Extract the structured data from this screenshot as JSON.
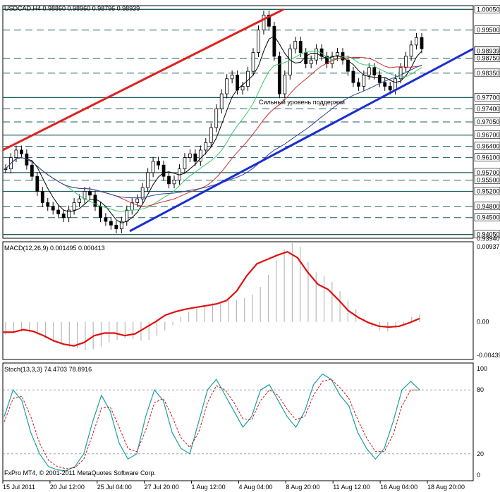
{
  "chart_data": {
    "type": "candlestick",
    "symbol_header": "USDCAD,H4",
    "ohlc_header": "0.98860 0.98960 0.98796 0.98939",
    "current_price": "0.98939",
    "support_text": "Сильный уровень поддержки",
    "copyright": "FxPro MT4, © 2001-2011 MetaQuotes Software Corp.",
    "price_axis": {
      "min": 0.9395,
      "max": 1.0015,
      "ticks": [
        "1.00050",
        "0.99500",
        "0.98750",
        "0.98350",
        "0.97700",
        "0.97400",
        "0.97050",
        "0.96700",
        "0.96400",
        "0.96100",
        "0.95700",
        "0.95500",
        "0.95200",
        "0.94800",
        "0.94500",
        "0.94050",
        "0.93940"
      ]
    },
    "levels": [
      {
        "price": 1.0005,
        "style": "solid"
      },
      {
        "price": 0.995,
        "style": "dashed"
      },
      {
        "price": 0.9875,
        "style": "dashed"
      },
      {
        "price": 0.9835,
        "style": "dashed"
      },
      {
        "price": 0.977,
        "style": "solid"
      },
      {
        "price": 0.974,
        "style": "dashed"
      },
      {
        "price": 0.9705,
        "style": "dashed"
      },
      {
        "price": 0.967,
        "style": "solid"
      },
      {
        "price": 0.964,
        "style": "dashed"
      },
      {
        "price": 0.961,
        "style": "dashed"
      },
      {
        "price": 0.957,
        "style": "solid"
      },
      {
        "price": 0.955,
        "style": "dashed"
      },
      {
        "price": 0.952,
        "style": "solid"
      },
      {
        "price": 0.948,
        "style": "dashed"
      },
      {
        "price": 0.945,
        "style": "dashed"
      },
      {
        "price": 0.9405,
        "style": "solid"
      }
    ],
    "x_labels": [
      "15 Jul 2011",
      "20 Jul 12:00",
      "25 Jul 04:00",
      "27 Jul 20:00",
      "1 Aug 12:00",
      "4 Aug 04:00",
      "8 Aug 20:00",
      "11 Aug 12:00",
      "16 Aug 04:00",
      "18 Aug 20:00"
    ],
    "close_path": [
      0.958,
      0.961,
      0.963,
      0.962,
      0.959,
      0.956,
      0.952,
      0.949,
      0.948,
      0.947,
      0.946,
      0.945,
      0.947,
      0.949,
      0.95,
      0.952,
      0.951,
      0.948,
      0.945,
      0.944,
      0.943,
      0.942,
      0.944,
      0.947,
      0.949,
      0.95,
      0.953,
      0.957,
      0.96,
      0.959,
      0.956,
      0.954,
      0.955,
      0.958,
      0.961,
      0.962,
      0.96,
      0.963,
      0.965,
      0.969,
      0.974,
      0.978,
      0.982,
      0.983,
      0.979,
      0.98,
      0.984,
      0.989,
      0.995,
      0.999,
      0.996,
      0.988,
      0.978,
      0.983,
      0.99,
      0.992,
      0.989,
      0.986,
      0.987,
      0.99,
      0.988,
      0.986,
      0.988,
      0.989,
      0.987,
      0.984,
      0.981,
      0.98,
      0.983,
      0.985,
      0.983,
      0.981,
      0.98,
      0.979,
      0.982,
      0.985,
      0.988,
      0.991,
      0.993,
      0.99
    ],
    "macd": {
      "label": "MACD(12,26,9) 0.001495 0.000413",
      "ticks": [
        "0.00937",
        "0.00",
        "-0.00439"
      ],
      "min": -0.00439,
      "max": 0.00937,
      "histogram": [
        -0.0015,
        -0.0013,
        -0.0011,
        -0.0012,
        -0.0015,
        -0.0019,
        -0.0023,
        -0.0026,
        -0.0029,
        -0.0031,
        -0.0033,
        -0.0032,
        -0.0029,
        -0.0024,
        -0.0021,
        -0.0019,
        -0.002,
        -0.0022,
        -0.0021,
        -0.0016,
        -0.001,
        -0.0004,
        0.0006,
        0.0012,
        0.0016,
        0.0019,
        0.0022,
        0.0024,
        0.0025,
        0.0026,
        0.0028,
        0.0032,
        0.0041,
        0.0055,
        0.0072,
        0.0085,
        0.0092,
        0.0088,
        0.007,
        0.0058,
        0.0054,
        0.0047,
        0.0036,
        0.0025,
        0.0015,
        0.0004,
        -0.0006,
        -0.001,
        -0.0011,
        -0.0008,
        -0.0002,
        0.0006,
        0.0009
      ],
      "signal": [
        -0.0012,
        -0.0012,
        -0.0009,
        -0.0011,
        -0.0016,
        -0.0022,
        -0.0026,
        -0.0028,
        -0.0024,
        -0.0016,
        -0.0013,
        -0.0013,
        -0.0016,
        -0.0014,
        -0.0007,
        0.0,
        0.0008,
        0.0012,
        0.0015,
        0.0017,
        0.0019,
        0.0021,
        0.0025,
        0.0036,
        0.0054,
        0.0068,
        0.0073,
        0.0078,
        0.0082,
        0.0075,
        0.0058,
        0.0044,
        0.0038,
        0.0026,
        0.0013,
        0.0005,
        -0.0001,
        -0.0005,
        -0.0006,
        -0.0005,
        -0.0001,
        0.0004
      ]
    },
    "stoch": {
      "label": "Stoch(13,3,3) 74.4703 78.8916",
      "ticks": [
        "100",
        "80",
        "20",
        "0"
      ],
      "main": [
        55,
        80,
        70,
        40,
        20,
        8,
        5,
        4,
        8,
        20,
        50,
        75,
        60,
        30,
        15,
        20,
        55,
        80,
        70,
        40,
        25,
        20,
        50,
        80,
        90,
        75,
        60,
        45,
        55,
        80,
        85,
        70,
        55,
        45,
        60,
        85,
        95,
        90,
        75,
        65,
        40,
        25,
        15,
        25,
        50,
        80,
        88,
        80
      ],
      "signal": [
        50,
        72,
        74,
        55,
        30,
        14,
        8,
        6,
        7,
        15,
        38,
        63,
        64,
        45,
        25,
        22,
        42,
        68,
        72,
        55,
        35,
        26,
        40,
        68,
        84,
        80,
        68,
        53,
        52,
        70,
        80,
        75,
        62,
        52,
        55,
        75,
        88,
        90,
        82,
        72,
        52,
        35,
        22,
        22,
        38,
        65,
        80,
        80
      ]
    }
  }
}
